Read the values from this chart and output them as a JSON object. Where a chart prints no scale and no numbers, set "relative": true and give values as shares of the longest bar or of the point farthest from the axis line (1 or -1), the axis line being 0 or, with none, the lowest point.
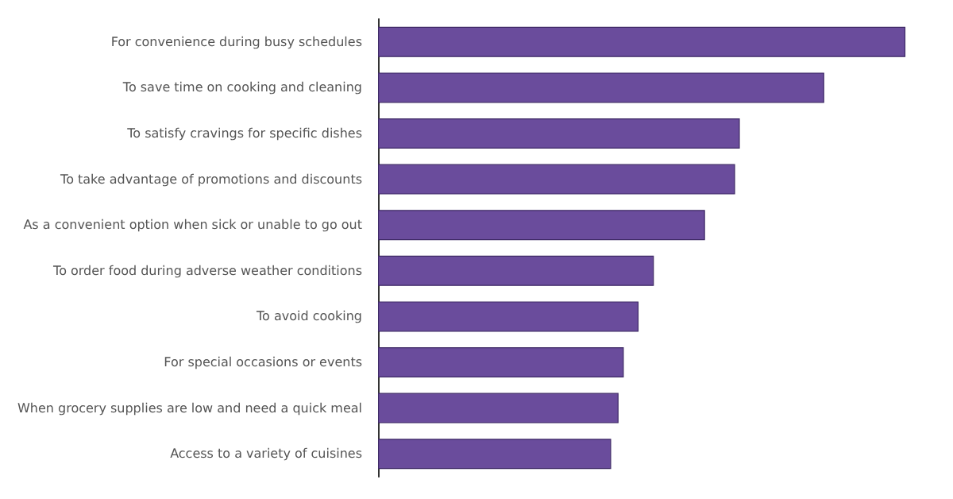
{
  "chart_data": {
    "type": "bar",
    "orientation": "horizontal",
    "relative": true,
    "color": "#6a4c9c",
    "categories": [
      "For convenience during busy schedules",
      "To save time on cooking and cleaning",
      "To satisfy cravings for specific dishes",
      "To take advantage of promotions and discounts",
      "As a convenient option when sick or unable to go out",
      "To order food during adverse weather conditions",
      "To avoid cooking",
      "For special occasions or events",
      "When grocery supplies are low and need a quick meal",
      "Access to a variety of cuisines"
    ],
    "values": [
      1,
      0.846,
      0.686,
      0.677,
      0.62,
      0.523,
      0.494,
      0.466,
      0.456,
      0.442
    ],
    "line_style": "solid"
  }
}
